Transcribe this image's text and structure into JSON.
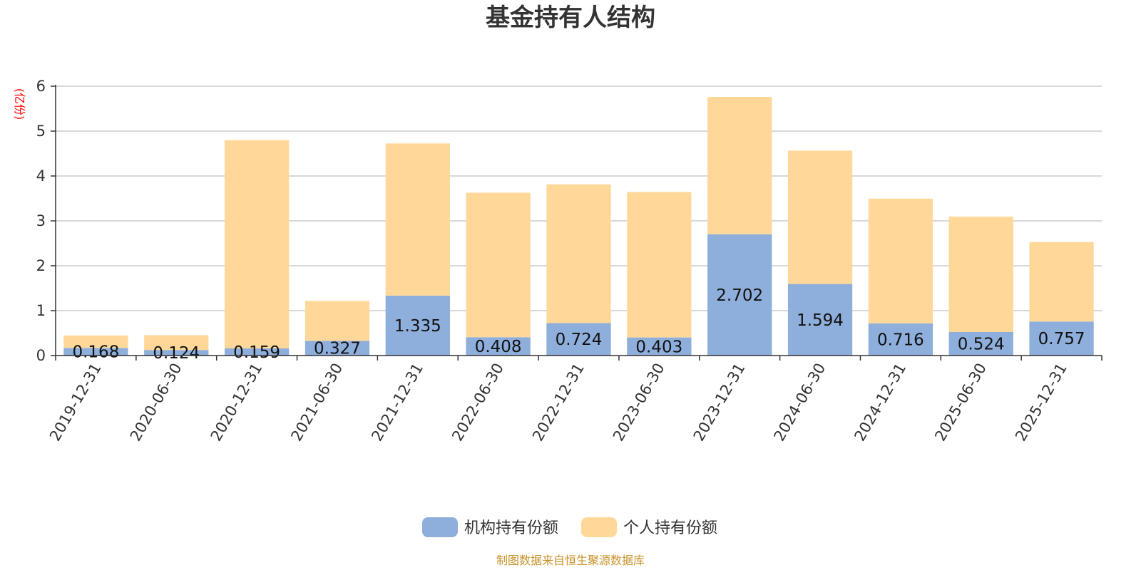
{
  "chart_data": {
    "type": "bar",
    "stacked": true,
    "title": "基金持有人结构",
    "unit_label": "(亿份)",
    "categories": [
      "2019-12-31",
      "2020-06-30",
      "2020-12-31",
      "2021-06-30",
      "2021-12-31",
      "2022-06-30",
      "2022-12-31",
      "2023-06-30",
      "2023-12-31",
      "2024-06-30",
      "2024-12-31",
      "2025-06-30",
      "2025-12-31"
    ],
    "series": [
      {
        "name": "机构持有份额",
        "color": "#8eaedb",
        "values": [
          0.168,
          0.124,
          0.159,
          0.327,
          1.335,
          0.408,
          0.724,
          0.403,
          2.702,
          1.594,
          0.716,
          0.524,
          0.757
        ],
        "labels": [
          "0.168",
          "0.124",
          "0.159",
          "0.327",
          "1.335",
          "0.408",
          "0.724",
          "0.403",
          "2.702",
          "1.594",
          "0.716",
          "0.524",
          "0.757"
        ]
      },
      {
        "name": "个人持有份额",
        "color": "#ffd899",
        "values": [
          0.28,
          0.33,
          4.64,
          0.89,
          3.39,
          3.22,
          3.09,
          3.24,
          3.06,
          2.97,
          2.78,
          2.57,
          1.77
        ]
      }
    ],
    "ylim": [
      0,
      6
    ],
    "yticks": [
      "0",
      "1",
      "2",
      "3",
      "4",
      "5",
      "6"
    ],
    "grid": true,
    "legend_position": "bottom-center",
    "source_note": "制图数据来自恒生聚源数据库",
    "colors": {
      "unit": "#ff0000",
      "source": "#c8922a",
      "grid": "#cccccc",
      "axis": "#333333"
    }
  }
}
